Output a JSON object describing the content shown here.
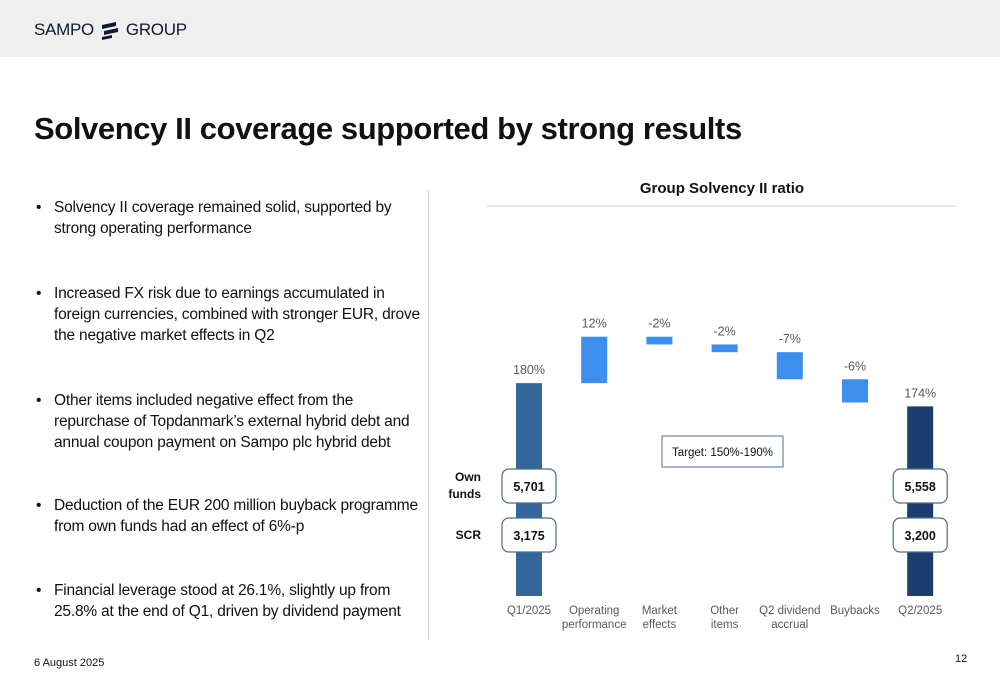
{
  "header": {
    "logo_left": "SAMPO",
    "logo_right": "GROUP"
  },
  "page": {
    "title": "Solvency II coverage supported by strong results",
    "date": "6 August 2025",
    "page_number": "12"
  },
  "bullets": [
    "Solvency II coverage remained solid, supported by strong operating performance",
    "Increased FX risk due to earnings accumulated in foreign currencies, combined with stronger EUR, drove the negative market effects in Q2",
    "Other items included negative effect from the repurchase of Topdanmark’s external hybrid debt and annual coupon payment on Sampo plc hybrid debt",
    "Deduction of the EUR 200 million buyback programme from own funds had an effect of 6%-p",
    "Financial leverage stood at 26.1%, slightly up from 25.8% at the end of Q1, driven by dividend payment"
  ],
  "chart_data": {
    "type": "bar",
    "subtype": "waterfall",
    "title": "Group Solvency II ratio",
    "unit": "%",
    "categories": [
      [
        "Q1/2025"
      ],
      [
        "Operating",
        "performance"
      ],
      [
        "Market",
        "effects"
      ],
      [
        "Other",
        "items"
      ],
      [
        "Q2 dividend",
        "accrual"
      ],
      [
        "Buybacks"
      ],
      [
        "Q2/2025"
      ]
    ],
    "values": [
      180,
      12,
      -2,
      -2,
      -7,
      -6,
      174
    ],
    "bar_kinds": [
      "total",
      "delta",
      "delta",
      "delta",
      "delta",
      "delta",
      "total"
    ],
    "data_labels": [
      "180%",
      "12%",
      "-2%",
      "-2%",
      "-7%",
      "-6%",
      "174%"
    ],
    "ylim": [
      125,
      200
    ],
    "row_labels": {
      "own_funds": [
        "Own",
        "funds"
      ],
      "scr": "SCR"
    },
    "own_funds": {
      "Q1/2025": "5,701",
      "Q2/2025": "5,558"
    },
    "scr": {
      "Q1/2025": "3,175",
      "Q2/2025": "3,200"
    },
    "annotation": "Target: 150%-190%",
    "colors": {
      "q1_total": "#336699",
      "q2_total": "#1c3e6e",
      "delta": "#3d8fee",
      "label": "#595959",
      "box_border": "#4a6d95"
    }
  }
}
